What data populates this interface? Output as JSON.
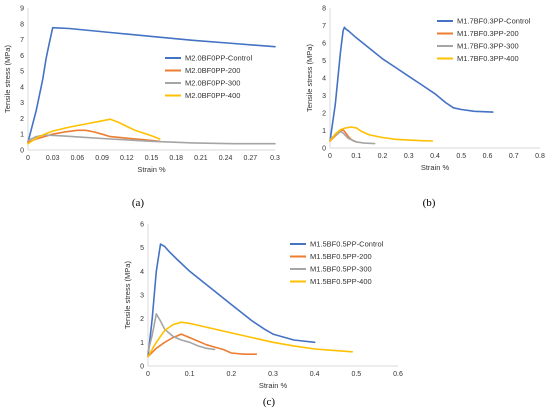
{
  "colors": {
    "control": "#4472C4",
    "t200": "#ED7D31",
    "t300": "#A5A5A5",
    "t400": "#FFC000",
    "axis": "#D9D9D9",
    "text": "#333333"
  },
  "chart_data": [
    {
      "type": "line",
      "panel_label": "(a)",
      "xlabel": "Strain %",
      "ylabel": "Tensile stress (MPa)",
      "xlim": [
        0,
        0.3
      ],
      "ylim": [
        0,
        9
      ],
      "xticks": [
        0,
        0.03,
        0.06,
        0.09,
        0.12,
        0.15,
        0.18,
        0.21,
        0.24,
        0.27,
        0.3
      ],
      "xtick_labels": [
        "0",
        "0.03",
        "0.06",
        "0.09",
        "0.12",
        "0.15",
        "0.18",
        "0.21",
        "0.24",
        "0.27",
        "0.3"
      ],
      "yticks": [
        0,
        1,
        2,
        3,
        4,
        5,
        6,
        7,
        8,
        9
      ],
      "ytick_labels": [
        "0",
        "1",
        "2",
        "3",
        "4",
        "5",
        "6",
        "7",
        "8",
        "9"
      ],
      "grid": false,
      "legend_position": "right",
      "series": [
        {
          "name": "M2.0BF0PP-Control",
          "color": "control",
          "x": [
            0,
            0.01,
            0.018,
            0.022,
            0.026,
            0.03,
            0.05,
            0.1,
            0.15,
            0.2,
            0.25,
            0.3
          ],
          "y": [
            0.5,
            2.5,
            4.5,
            5.8,
            6.8,
            7.75,
            7.7,
            7.45,
            7.2,
            6.95,
            6.75,
            6.55
          ]
        },
        {
          "name": "M2.0BF0PP-200",
          "color": "t200",
          "x": [
            0,
            0.01,
            0.02,
            0.03,
            0.045,
            0.06,
            0.07,
            0.08,
            0.09,
            0.1,
            0.12,
            0.14,
            0.16
          ],
          "y": [
            0.5,
            0.7,
            0.85,
            1.0,
            1.15,
            1.25,
            1.25,
            1.15,
            1.0,
            0.85,
            0.75,
            0.65,
            0.55
          ]
        },
        {
          "name": "M2.0BF0PP-300",
          "color": "t300",
          "x": [
            0,
            0.01,
            0.02,
            0.04,
            0.07,
            0.1,
            0.15,
            0.2,
            0.25,
            0.3
          ],
          "y": [
            0.6,
            0.85,
            0.95,
            0.9,
            0.8,
            0.7,
            0.55,
            0.45,
            0.4,
            0.4
          ]
        },
        {
          "name": "M2.0BF0PP-400",
          "color": "t400",
          "x": [
            0,
            0.01,
            0.02,
            0.03,
            0.05,
            0.07,
            0.09,
            0.1,
            0.11,
            0.13,
            0.15,
            0.16
          ],
          "y": [
            0.4,
            0.75,
            1.0,
            1.2,
            1.45,
            1.65,
            1.85,
            1.95,
            1.75,
            1.25,
            0.9,
            0.7
          ]
        }
      ]
    },
    {
      "type": "line",
      "panel_label": "(b)",
      "xlabel": "Strain %",
      "ylabel": "Tensile stress (MPa)",
      "xlim": [
        0,
        0.8
      ],
      "ylim": [
        0,
        8
      ],
      "xticks": [
        0,
        0.1,
        0.2,
        0.3,
        0.4,
        0.5,
        0.6,
        0.7,
        0.8
      ],
      "xtick_labels": [
        "0",
        "0.1",
        "0.2",
        "0.3",
        "0.4",
        "0.5",
        "0.6",
        "0.7",
        "0.8"
      ],
      "yticks": [
        0,
        1,
        2,
        3,
        4,
        5,
        6,
        7,
        8
      ],
      "ytick_labels": [
        "0",
        "1",
        "2",
        "3",
        "4",
        "5",
        "6",
        "7",
        "8"
      ],
      "grid": false,
      "legend_position": "top-right",
      "series": [
        {
          "name": "M1.7BF0.3PP-Control",
          "color": "control",
          "x": [
            0,
            0.02,
            0.04,
            0.05,
            0.055,
            0.06,
            0.07,
            0.1,
            0.15,
            0.2,
            0.25,
            0.3,
            0.35,
            0.4,
            0.44,
            0.47,
            0.5,
            0.55,
            0.62
          ],
          "y": [
            0.4,
            2.5,
            5.5,
            6.7,
            6.9,
            6.8,
            6.7,
            6.3,
            5.7,
            5.1,
            4.6,
            4.1,
            3.6,
            3.1,
            2.6,
            2.3,
            2.2,
            2.1,
            2.05
          ]
        },
        {
          "name": "M1.7BF0.3PP-200",
          "color": "t200",
          "x": [
            0,
            0.02,
            0.04,
            0.05,
            0.06,
            0.07,
            0.08,
            0.09,
            0.1
          ],
          "y": [
            0.4,
            0.7,
            0.95,
            1.05,
            0.85,
            0.65,
            0.5,
            0.4,
            0.35
          ]
        },
        {
          "name": "M1.7BF0.3PP-300",
          "color": "t300",
          "x": [
            0,
            0.02,
            0.04,
            0.05,
            0.07,
            0.1,
            0.13,
            0.17
          ],
          "y": [
            0.5,
            0.75,
            0.95,
            0.85,
            0.55,
            0.35,
            0.28,
            0.25
          ]
        },
        {
          "name": "M1.7BF0.3PP-400",
          "color": "t400",
          "x": [
            0,
            0.02,
            0.04,
            0.06,
            0.08,
            0.1,
            0.12,
            0.15,
            0.2,
            0.25,
            0.3,
            0.35,
            0.39
          ],
          "y": [
            0.4,
            0.8,
            1.05,
            1.15,
            1.2,
            1.15,
            0.95,
            0.75,
            0.6,
            0.5,
            0.45,
            0.42,
            0.4
          ]
        }
      ]
    },
    {
      "type": "line",
      "panel_label": "(c)",
      "xlabel": "Strain %",
      "ylabel": "Tensile stress (MPa)",
      "xlim": [
        0,
        0.6
      ],
      "ylim": [
        0,
        6
      ],
      "xticks": [
        0,
        0.1,
        0.2,
        0.3,
        0.4,
        0.5,
        0.6
      ],
      "xtick_labels": [
        "0",
        "0.1",
        "0.2",
        "0.3",
        "0.4",
        "0.5",
        "0.6"
      ],
      "yticks": [
        0,
        1,
        2,
        3,
        4,
        5,
        6
      ],
      "ytick_labels": [
        "0",
        "1",
        "2",
        "3",
        "4",
        "5",
        "6"
      ],
      "grid": false,
      "legend_position": "top-right",
      "series": [
        {
          "name": "M1.5BF0.5PP-Control",
          "color": "control",
          "x": [
            0,
            0.01,
            0.02,
            0.03,
            0.04,
            0.05,
            0.07,
            0.1,
            0.15,
            0.2,
            0.25,
            0.28,
            0.3,
            0.35,
            0.4
          ],
          "y": [
            0.4,
            2.0,
            4.0,
            5.15,
            5.05,
            4.85,
            4.5,
            4.0,
            3.3,
            2.6,
            1.9,
            1.55,
            1.35,
            1.1,
            1.0
          ]
        },
        {
          "name": "M1.5BF0.5PP-200",
          "color": "t200",
          "x": [
            0,
            0.02,
            0.04,
            0.06,
            0.08,
            0.1,
            0.12,
            0.14,
            0.16,
            0.18,
            0.2,
            0.23,
            0.26
          ],
          "y": [
            0.4,
            0.75,
            1.0,
            1.2,
            1.35,
            1.2,
            1.05,
            0.9,
            0.8,
            0.7,
            0.55,
            0.5,
            0.5
          ]
        },
        {
          "name": "M1.5BF0.5PP-300",
          "color": "t300",
          "x": [
            0,
            0.01,
            0.02,
            0.03,
            0.04,
            0.06,
            0.08,
            0.1,
            0.12,
            0.14,
            0.16
          ],
          "y": [
            0.6,
            1.3,
            2.2,
            1.9,
            1.55,
            1.25,
            1.1,
            1.0,
            0.85,
            0.75,
            0.7
          ]
        },
        {
          "name": "M1.5BF0.5PP-400",
          "color": "t400",
          "x": [
            0,
            0.02,
            0.04,
            0.06,
            0.08,
            0.1,
            0.15,
            0.2,
            0.25,
            0.3,
            0.35,
            0.4,
            0.45,
            0.49
          ],
          "y": [
            0.4,
            1.0,
            1.5,
            1.75,
            1.85,
            1.8,
            1.6,
            1.4,
            1.2,
            1.0,
            0.85,
            0.72,
            0.65,
            0.6
          ]
        }
      ]
    }
  ]
}
